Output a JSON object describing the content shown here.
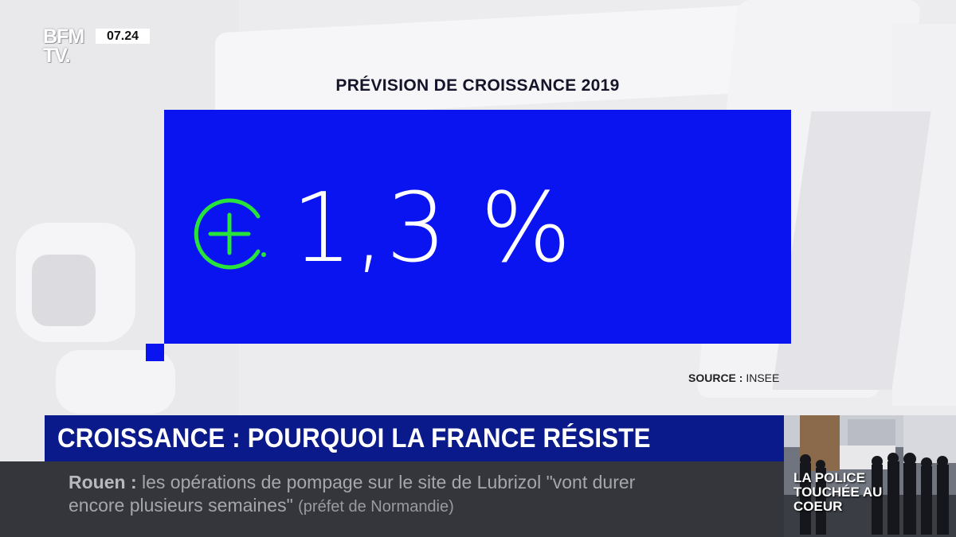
{
  "channel": {
    "logo_line1": "BFM",
    "logo_line2": "TV.",
    "clock": "07.24"
  },
  "infographic": {
    "title": "PRÉVISION DE CROISSANCE 2019",
    "value": "1,3 %",
    "source_label": "SOURCE :",
    "source_value": "INSEE",
    "icon": "plus-circle-icon",
    "accent_color": "#27e33a",
    "panel_color": "#0a14f0"
  },
  "headline": {
    "text": "CROISSANCE : POURQUOI LA FRANCE RÉSISTE"
  },
  "ticker": {
    "place": "Rouen",
    "separator": ":",
    "line1": "les opérations de pompage sur le site de Lubrizol \"vont durer",
    "line2": "encore plusieurs semaines\"",
    "attribution": "(préfet de Normandie)"
  },
  "thumbnail": {
    "caption": "LA POLICE TOUCHÉE AU COEUR"
  }
}
